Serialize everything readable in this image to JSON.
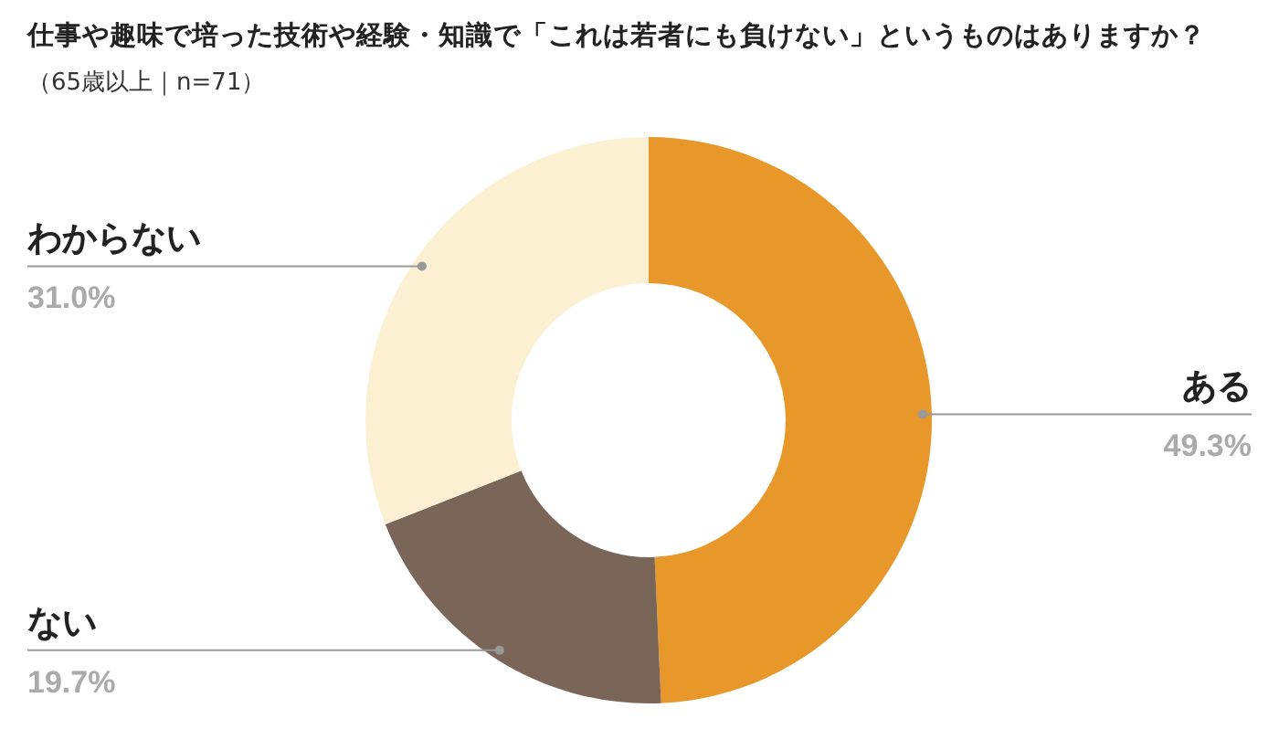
{
  "chart_data": {
    "type": "donut",
    "title": "仕事や趣味で培った技術や経験・知識で「これは若者にも負けない」というものはありますか？",
    "subtitle": "（65歳以上｜n=71）",
    "categories": [
      "ある",
      "ない",
      "わからない"
    ],
    "values": [
      49.3,
      19.7,
      31.0
    ],
    "colors": [
      "#e8982a",
      "#7a6658",
      "#fbf0d2"
    ],
    "value_labels": [
      "49.3%",
      "19.7%",
      "31.0%"
    ]
  }
}
